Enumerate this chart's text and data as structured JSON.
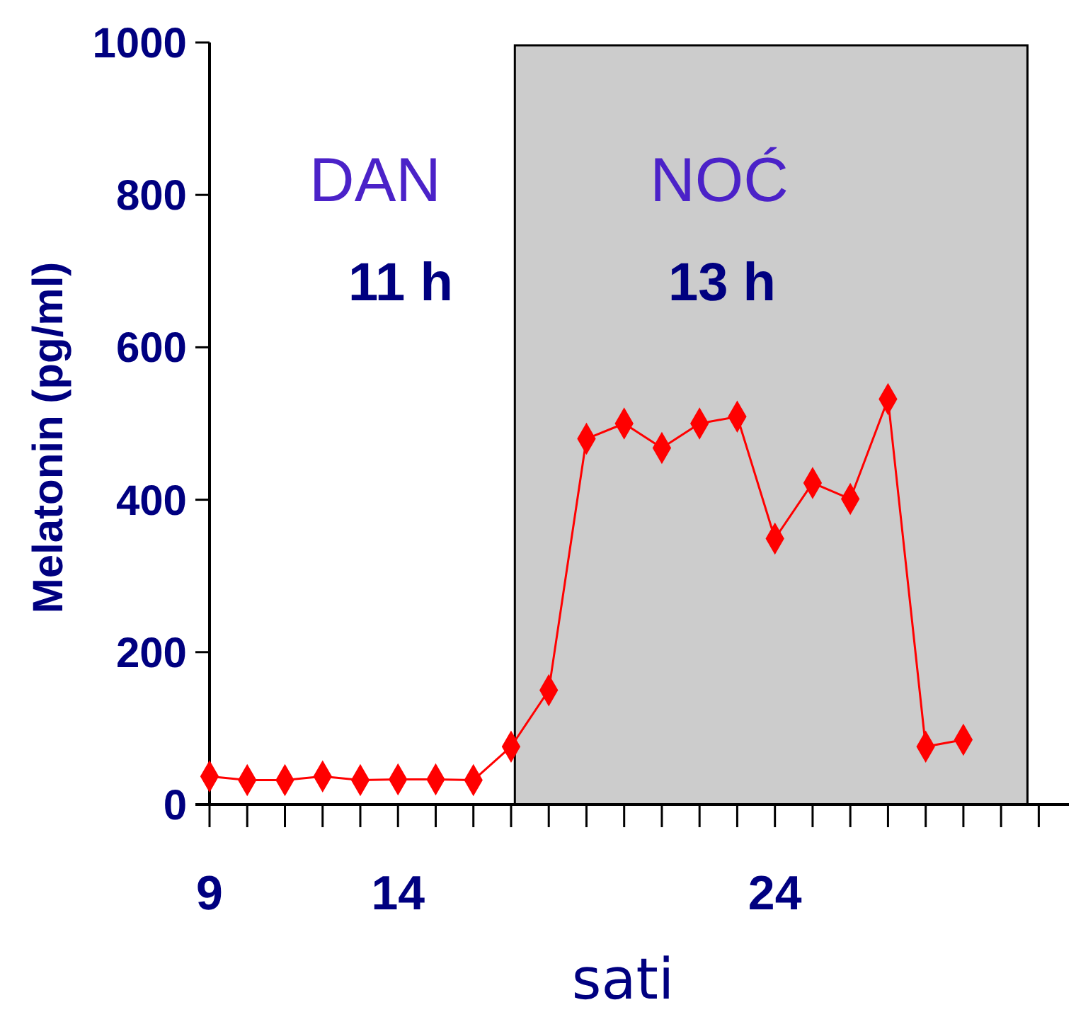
{
  "chart_data": {
    "type": "line",
    "xlabel": "sati",
    "ylabel": "Melatonin (pg/ml)",
    "x": [
      9,
      10,
      11,
      12,
      13,
      14,
      15,
      16,
      17,
      18,
      19,
      20,
      21,
      22,
      23,
      24,
      25,
      26,
      27,
      28,
      29
    ],
    "series": [
      {
        "color": "#ff0000",
        "values": [
          37,
          32,
          32,
          37,
          32,
          33,
          33,
          32,
          76,
          150,
          480,
          500,
          468,
          500,
          509,
          349,
          422,
          401,
          532,
          76,
          85
        ]
      }
    ],
    "marker": "diamond",
    "line_style": "solid",
    "grid": false,
    "xlim": [
      9,
      31.8
    ],
    "xticks": [
      {
        "value": 9,
        "label": "9"
      },
      {
        "value": 10,
        "label": null
      },
      {
        "value": 11,
        "label": null
      },
      {
        "value": 12,
        "label": null
      },
      {
        "value": 13,
        "label": null
      },
      {
        "value": 14,
        "label": "14"
      },
      {
        "value": 15,
        "label": null
      },
      {
        "value": 16,
        "label": null
      },
      {
        "value": 17,
        "label": null
      },
      {
        "value": 18,
        "label": null
      },
      {
        "value": 19,
        "label": null
      },
      {
        "value": 20,
        "label": null
      },
      {
        "value": 21,
        "label": null
      },
      {
        "value": 22,
        "label": null
      },
      {
        "value": 23,
        "label": null
      },
      {
        "value": 24,
        "label": "24"
      },
      {
        "value": 25,
        "label": null
      },
      {
        "value": 26,
        "label": null
      },
      {
        "value": 27,
        "label": null
      },
      {
        "value": 28,
        "label": null
      },
      {
        "value": 29,
        "label": null
      },
      {
        "value": 30,
        "label": null
      },
      {
        "value": 31,
        "label": null
      }
    ],
    "ylim": [
      0,
      1000
    ],
    "yticks": [
      0,
      200,
      400,
      600,
      800,
      1000
    ],
    "bands": [
      {
        "axis": "x",
        "from": 17.1,
        "to": 30.7,
        "color": "#cccccc"
      }
    ],
    "annotations": [
      "DAN",
      "11 h",
      "NOĆ",
      "13 h"
    ]
  }
}
